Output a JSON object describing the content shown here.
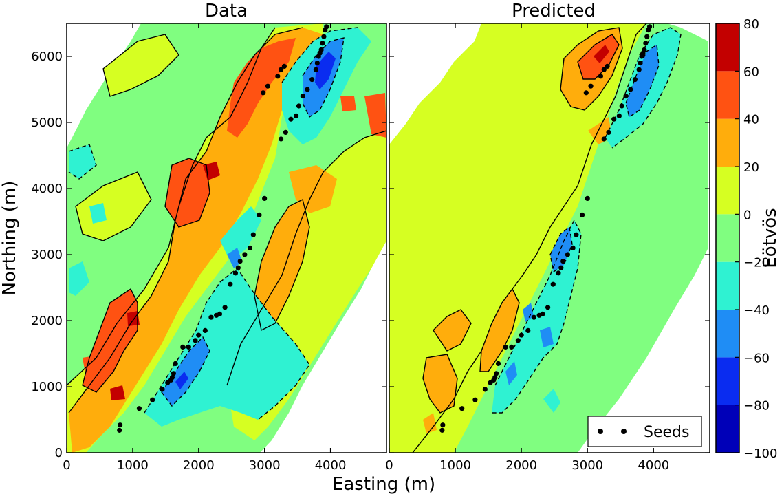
{
  "chart_data": [
    {
      "type": "heatmap",
      "title": "Data",
      "xlabel": "Easting (m)",
      "ylabel": "Northing (m)",
      "xlim": [
        0,
        4850
      ],
      "ylim": [
        0,
        6500
      ],
      "xticks": [
        0,
        1000,
        2000,
        3000,
        4000
      ],
      "yticks": [
        0,
        1000,
        2000,
        3000,
        4000,
        5000,
        6000
      ],
      "seeds_x": [
        800,
        810,
        1100,
        1300,
        1450,
        1530,
        1580,
        1600,
        1620,
        1650,
        1760,
        1850,
        1950,
        2000,
        2100,
        2190,
        2270,
        2320,
        2400,
        2480,
        2560,
        2600,
        2630,
        2700,
        2780,
        2830,
        2920,
        3000,
        3250,
        3320,
        3400,
        3480,
        3520,
        3580,
        3650,
        3720,
        3780,
        3800,
        3820,
        3840,
        3860,
        3880,
        3900,
        3920,
        3940,
        2980,
        3050,
        3200,
        3250,
        3300
      ],
      "seeds_y": [
        340,
        420,
        670,
        800,
        960,
        1060,
        1100,
        1140,
        1200,
        1350,
        1600,
        1600,
        1700,
        1780,
        1850,
        2050,
        2080,
        2100,
        2200,
        2550,
        2720,
        2800,
        2900,
        3000,
        3100,
        3300,
        3600,
        3850,
        4750,
        4850,
        5050,
        5100,
        5250,
        5400,
        5500,
        5650,
        5800,
        5900,
        6000,
        6050,
        6100,
        6200,
        6300,
        6400,
        6450,
        5450,
        5550,
        5700,
        5800,
        5850
      ],
      "seeds_label": "Seeds"
    },
    {
      "type": "heatmap",
      "title": "Predicted",
      "xlabel": "Easting (m)",
      "xlim": [
        0,
        4850
      ],
      "ylim": [
        0,
        6500
      ],
      "xticks": [
        0,
        1000,
        2000,
        3000,
        4000
      ],
      "seeds_x": [
        800,
        810,
        1100,
        1300,
        1450,
        1530,
        1580,
        1600,
        1620,
        1650,
        1760,
        1850,
        1950,
        2000,
        2100,
        2190,
        2270,
        2320,
        2400,
        2480,
        2560,
        2600,
        2630,
        2700,
        2780,
        2830,
        2920,
        3000,
        3250,
        3320,
        3400,
        3480,
        3520,
        3580,
        3650,
        3720,
        3780,
        3800,
        3820,
        3840,
        3860,
        3880,
        3900,
        3920,
        3940,
        2980,
        3050,
        3200,
        3250,
        3300
      ],
      "seeds_y": [
        340,
        420,
        670,
        800,
        960,
        1060,
        1100,
        1140,
        1200,
        1350,
        1600,
        1600,
        1700,
        1780,
        1850,
        2050,
        2080,
        2100,
        2200,
        2550,
        2720,
        2800,
        2900,
        3000,
        3100,
        3300,
        3600,
        3850,
        4750,
        4850,
        5050,
        5100,
        5250,
        5400,
        5500,
        5650,
        5800,
        5900,
        6000,
        6050,
        6100,
        6200,
        6300,
        6400,
        6450,
        5450,
        5550,
        5700,
        5800,
        5850
      ],
      "seeds_label": "Seeds",
      "legend_position": "bottom-right"
    }
  ],
  "colorbar": {
    "label": "Eötvös",
    "levels": [
      -100,
      -80,
      -60,
      -40,
      -20,
      0,
      20,
      40,
      60,
      80
    ],
    "colors": [
      "#0000b8",
      "#0a2cf0",
      "#1f8df5",
      "#2ff2d2",
      "#80fe80",
      "#d6ff22",
      "#ffad0c",
      "#ff5212",
      "#c30000"
    ]
  }
}
